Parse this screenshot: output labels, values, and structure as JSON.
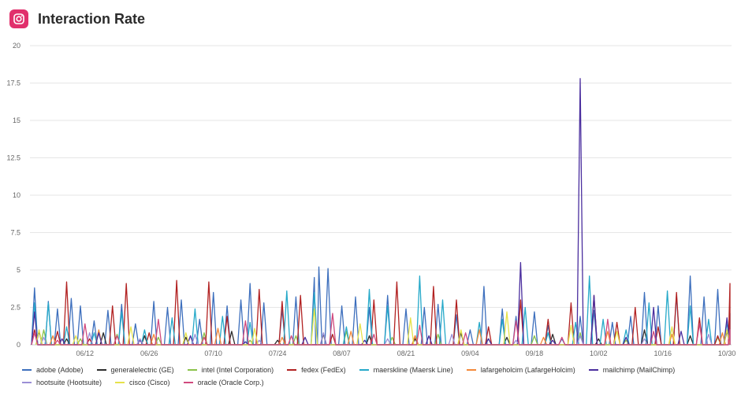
{
  "header": {
    "title": "Interaction Rate",
    "icon": "instagram-icon",
    "icon_color": "#e1306c"
  },
  "chart_data": {
    "type": "line",
    "title": "Interaction Rate",
    "xlabel": "",
    "ylabel": "",
    "ylim": [
      0,
      20
    ],
    "y_ticks": [
      "0",
      "2.5",
      "5",
      "7.5",
      "10",
      "12.5",
      "15",
      "17.5",
      "20"
    ],
    "x_ticks": [
      "06/12",
      "06/26",
      "07/10",
      "07/24",
      "08/07",
      "08/21",
      "09/04",
      "09/18",
      "10/02",
      "10/16",
      "10/30"
    ],
    "x_range": [
      "05/31",
      "10/31"
    ],
    "grid": true,
    "legend_position": "bottom",
    "series": [
      {
        "name": "adobe (Adobe)",
        "color": "#3d6fbd",
        "points": [
          [
            "06/01",
            3.8
          ],
          [
            "06/04",
            2.9
          ],
          [
            "06/06",
            2.4
          ],
          [
            "06/09",
            3.1
          ],
          [
            "06/11",
            2.6
          ],
          [
            "06/14",
            1.6
          ],
          [
            "06/17",
            2.3
          ],
          [
            "06/20",
            2.7
          ],
          [
            "06/23",
            1.4
          ],
          [
            "06/27",
            2.9
          ],
          [
            "06/30",
            2.5
          ],
          [
            "07/03",
            3.0
          ],
          [
            "07/07",
            1.7
          ],
          [
            "07/10",
            3.5
          ],
          [
            "07/13",
            2.6
          ],
          [
            "07/16",
            3.0
          ],
          [
            "07/18",
            4.1
          ],
          [
            "07/21",
            2.8
          ],
          [
            "07/25",
            2.4
          ],
          [
            "07/28",
            3.2
          ],
          [
            "08/01",
            4.5
          ],
          [
            "08/02",
            5.2
          ],
          [
            "08/04",
            5.1
          ],
          [
            "08/07",
            2.6
          ],
          [
            "08/10",
            3.2
          ],
          [
            "08/13",
            2.5
          ],
          [
            "08/17",
            3.3
          ],
          [
            "08/21",
            2.4
          ],
          [
            "08/25",
            2.5
          ],
          [
            "08/28",
            2.7
          ],
          [
            "09/01",
            2.0
          ],
          [
            "09/04",
            1.0
          ],
          [
            "09/07",
            3.9
          ],
          [
            "09/11",
            2.4
          ],
          [
            "09/14",
            1.9
          ],
          [
            "09/18",
            2.2
          ],
          [
            "09/21",
            1.3
          ],
          [
            "09/24",
            0.4
          ],
          [
            "09/28",
            1.9
          ],
          [
            "10/01",
            2.3
          ],
          [
            "10/05",
            1.5
          ],
          [
            "10/09",
            1.9
          ],
          [
            "10/12",
            3.5
          ],
          [
            "10/15",
            2.6
          ],
          [
            "10/19",
            3.3
          ],
          [
            "10/22",
            4.6
          ],
          [
            "10/25",
            3.2
          ],
          [
            "10/28",
            3.7
          ],
          [
            "10/31",
            2.1
          ]
        ]
      },
      {
        "name": "generalelectric (GE)",
        "color": "#2d2d2d",
        "points": [
          [
            "06/02",
            0.9
          ],
          [
            "06/08",
            0.4
          ],
          [
            "06/16",
            0.8
          ],
          [
            "06/25",
            0.6
          ],
          [
            "07/04",
            0.5
          ],
          [
            "07/14",
            0.9
          ],
          [
            "07/24",
            0.3
          ],
          [
            "08/03",
            0.7
          ],
          [
            "08/13",
            0.6
          ],
          [
            "08/23",
            0.4
          ],
          [
            "09/02",
            0.8
          ],
          [
            "09/12",
            0.5
          ],
          [
            "09/22",
            0.7
          ],
          [
            "10/02",
            0.4
          ],
          [
            "10/12",
            1.0
          ],
          [
            "10/22",
            0.6
          ],
          [
            "10/30",
            0.9
          ]
        ]
      },
      {
        "name": "intel (Intel Corporation)",
        "color": "#8bc34a",
        "points": [
          [
            "06/03",
            1.0
          ],
          [
            "06/11",
            0.4
          ],
          [
            "06/19",
            0.7
          ],
          [
            "06/28",
            0.5
          ],
          [
            "07/08",
            0.8
          ],
          [
            "07/18",
            0.3
          ],
          [
            "07/28",
            0.6
          ],
          [
            "08/08",
            0.9
          ],
          [
            "08/18",
            0.5
          ],
          [
            "08/28",
            0.7
          ],
          [
            "09/08",
            0.4
          ],
          [
            "09/18",
            0.6
          ],
          [
            "09/28",
            0.8
          ],
          [
            "10/08",
            0.3
          ],
          [
            "10/18",
            0.7
          ],
          [
            "10/28",
            0.5
          ]
        ]
      },
      {
        "name": "fedex (FedEx)",
        "color": "#b22222",
        "points": [
          [
            "06/01",
            1.0
          ],
          [
            "06/06",
            0.9
          ],
          [
            "06/08",
            4.2
          ],
          [
            "06/13",
            0.4
          ],
          [
            "06/18",
            2.6
          ],
          [
            "06/21",
            4.1
          ],
          [
            "06/26",
            0.8
          ],
          [
            "07/02",
            4.3
          ],
          [
            "07/09",
            4.2
          ],
          [
            "07/13",
            1.9
          ],
          [
            "07/20",
            3.7
          ],
          [
            "07/25",
            2.9
          ],
          [
            "07/29",
            3.3
          ],
          [
            "08/05",
            0.7
          ],
          [
            "08/14",
            3.0
          ],
          [
            "08/19",
            4.2
          ],
          [
            "08/23",
            0.6
          ],
          [
            "08/27",
            3.9
          ],
          [
            "09/01",
            3.0
          ],
          [
            "09/08",
            1.2
          ],
          [
            "09/15",
            3.0
          ],
          [
            "09/21",
            1.7
          ],
          [
            "09/26",
            2.8
          ],
          [
            "10/01",
            3.3
          ],
          [
            "10/06",
            1.5
          ],
          [
            "10/10",
            2.5
          ],
          [
            "10/15",
            1.2
          ],
          [
            "10/19",
            3.5
          ],
          [
            "10/24",
            1.8
          ],
          [
            "10/28",
            0.6
          ],
          [
            "10/31",
            4.1
          ]
        ]
      },
      {
        "name": "maerskline (Maersk Line)",
        "color": "#26a9c9",
        "points": [
          [
            "06/01",
            2.8
          ],
          [
            "06/04",
            2.8
          ],
          [
            "06/08",
            1.2
          ],
          [
            "06/14",
            0.8
          ],
          [
            "06/20",
            2.2
          ],
          [
            "06/25",
            1.0
          ],
          [
            "07/01",
            1.8
          ],
          [
            "07/06",
            2.4
          ],
          [
            "07/12",
            1.9
          ],
          [
            "07/18",
            1.5
          ],
          [
            "07/26",
            3.6
          ],
          [
            "08/01",
            3.5
          ],
          [
            "08/08",
            1.2
          ],
          [
            "08/13",
            3.7
          ],
          [
            "08/17",
            2.6
          ],
          [
            "08/24",
            4.6
          ],
          [
            "08/29",
            3.0
          ],
          [
            "09/06",
            1.5
          ],
          [
            "09/11",
            1.7
          ],
          [
            "09/16",
            2.5
          ],
          [
            "09/21",
            0.8
          ],
          [
            "09/27",
            1.5
          ],
          [
            "09/30",
            4.6
          ],
          [
            "10/03",
            1.7
          ],
          [
            "10/08",
            1.0
          ],
          [
            "10/13",
            2.8
          ],
          [
            "10/17",
            3.6
          ],
          [
            "10/22",
            2.6
          ],
          [
            "10/26",
            1.7
          ],
          [
            "10/30",
            1.5
          ]
        ]
      },
      {
        "name": "lafargeholcim (LafargeHolcim)",
        "color": "#f4893a",
        "points": [
          [
            "06/05",
            0.6
          ],
          [
            "06/15",
            1.0
          ],
          [
            "06/27",
            0.7
          ],
          [
            "07/11",
            1.1
          ],
          [
            "07/25",
            0.5
          ],
          [
            "08/09",
            0.9
          ],
          [
            "08/23",
            0.6
          ],
          [
            "09/06",
            1.0
          ],
          [
            "09/20",
            0.5
          ],
          [
            "10/04",
            0.9
          ],
          [
            "10/18",
            0.7
          ],
          [
            "10/29",
            0.8
          ]
        ]
      },
      {
        "name": "mailchimp (MailChimp)",
        "color": "#4a2e9e",
        "points": [
          [
            "06/01",
            2.2
          ],
          [
            "06/07",
            0.4
          ],
          [
            "06/15",
            0.8
          ],
          [
            "06/24",
            0.3
          ],
          [
            "07/05",
            0.6
          ],
          [
            "07/17",
            0.2
          ],
          [
            "07/30",
            0.5
          ],
          [
            "08/12",
            0.3
          ],
          [
            "08/26",
            0.6
          ],
          [
            "09/08",
            0.4
          ],
          [
            "09/15",
            5.5
          ],
          [
            "09/22",
            0.3
          ],
          [
            "09/28",
            17.8
          ],
          [
            "10/01",
            3.3
          ],
          [
            "10/08",
            0.5
          ],
          [
            "10/14",
            2.5
          ],
          [
            "10/20",
            0.9
          ],
          [
            "10/30",
            1.8
          ]
        ]
      },
      {
        "name": "hootsuite (Hootsuite)",
        "color": "#9b8fd6",
        "points": [
          [
            "06/03",
            0.5
          ],
          [
            "06/13",
            0.8
          ],
          [
            "06/24",
            0.4
          ],
          [
            "07/06",
            0.7
          ],
          [
            "07/20",
            0.3
          ],
          [
            "08/03",
            0.8
          ],
          [
            "08/17",
            0.4
          ],
          [
            "08/31",
            0.7
          ],
          [
            "09/14",
            0.3
          ],
          [
            "09/28",
            0.6
          ],
          [
            "10/12",
            0.4
          ],
          [
            "10/26",
            0.7
          ]
        ]
      },
      {
        "name": "cisco (Cisco)",
        "color": "#e6e24a",
        "points": [
          [
            "06/02",
            1.0
          ],
          [
            "06/10",
            0.6
          ],
          [
            "06/22",
            1.2
          ],
          [
            "07/04",
            0.8
          ],
          [
            "07/19",
            1.1
          ],
          [
            "08/01",
            2.4
          ],
          [
            "08/11",
            1.4
          ],
          [
            "08/22",
            1.8
          ],
          [
            "09/02",
            1.0
          ],
          [
            "09/12",
            2.2
          ],
          [
            "09/26",
            1.3
          ],
          [
            "10/06",
            0.9
          ],
          [
            "10/18",
            1.2
          ],
          [
            "10/30",
            1.0
          ]
        ]
      },
      {
        "name": "oracle (Oracle Corp.)",
        "color": "#d04a7e",
        "points": [
          [
            "06/01",
            0.8
          ],
          [
            "06/06",
            0.3
          ],
          [
            "06/12",
            1.4
          ],
          [
            "06/19",
            0.6
          ],
          [
            "06/28",
            1.7
          ],
          [
            "07/08",
            0.5
          ],
          [
            "07/17",
            1.6
          ],
          [
            "07/27",
            0.6
          ],
          [
            "08/05",
            2.1
          ],
          [
            "08/14",
            0.7
          ],
          [
            "08/24",
            1.3
          ],
          [
            "09/03",
            0.8
          ],
          [
            "09/14",
            1.6
          ],
          [
            "09/24",
            0.5
          ],
          [
            "10/04",
            1.7
          ],
          [
            "10/14",
            0.9
          ],
          [
            "10/24",
            1.4
          ],
          [
            "10/31",
            1.0
          ]
        ]
      }
    ]
  }
}
